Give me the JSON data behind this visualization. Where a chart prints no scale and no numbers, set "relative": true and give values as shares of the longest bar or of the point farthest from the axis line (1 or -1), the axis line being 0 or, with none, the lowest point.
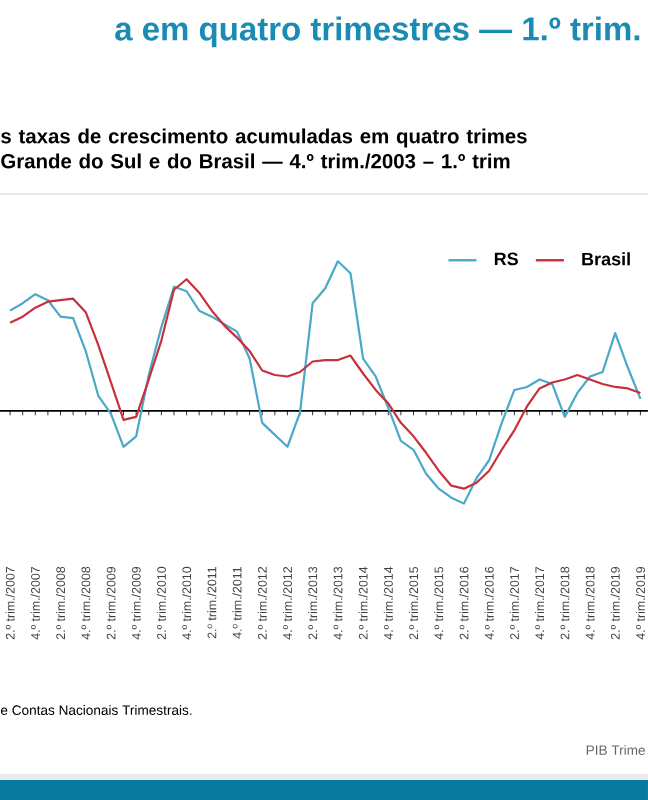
{
  "chart_data": {
    "type": "line",
    "relative": true,
    "title": "a em quatro trimestres — 1.º trim.",
    "subtitle": "s taxas de crescimento acumuladas em quatro trimes Grande do Sul e do Brasil — 4.º trim./2003 – 1.º trim",
    "annotations": [
      "e Contas Nacionais Trimestrais.",
      "PIB Trime"
    ],
    "categories": [
      "2.º trim./2007",
      null,
      "4.º trim./2007",
      null,
      "2.º trim./2008",
      null,
      "4.º trim./2008",
      null,
      "2.º trim./2009",
      null,
      "4.º trim./2009",
      null,
      "2.º trim./2010",
      null,
      "4.º trim./2010",
      null,
      "2.º trim./2011",
      null,
      "4.º trim./2011",
      null,
      "2.º trim./2012",
      null,
      "4.º trim./2012",
      null,
      "2.º trim./2013",
      null,
      "4.º trim./2013",
      null,
      "2.º trim./2014",
      null,
      "4.º trim./2014",
      null,
      "2.º trim./2015",
      null,
      "4.º trim./2015",
      null,
      "2.º trim./2016",
      null,
      "4.º trim./2016",
      null,
      "2.º trim./2017",
      null,
      "4.º trim./2017",
      null,
      "2.º trim./2018",
      null,
      "4.º trim./2018",
      null,
      "2.º trim./2019",
      null,
      "4.º trim./2019"
    ],
    "series": [
      {
        "name": "RS",
        "color": "#4aa8c8",
        "values": [
          0.67,
          0.72,
          0.78,
          0.74,
          0.63,
          0.62,
          0.4,
          0.1,
          -0.02,
          -0.24,
          -0.17,
          0.24,
          0.56,
          0.83,
          0.8,
          0.67,
          0.63,
          0.58,
          0.53,
          0.35,
          -0.08,
          -0.16,
          -0.24,
          -0.01,
          0.72,
          0.82,
          1,
          0.92,
          0.35,
          0.23,
          0.02,
          -0.2,
          -0.26,
          -0.42,
          -0.52,
          -0.58,
          -0.62,
          -0.45,
          -0.33,
          -0.08,
          0.14,
          0.16,
          0.21,
          0.18,
          -0.04,
          0.12,
          0.23,
          0.26,
          0.52,
          0.29,
          0.08
        ]
      },
      {
        "name": "Brasil",
        "color": "#c8303a",
        "values": [
          0.59,
          0.63,
          0.69,
          0.73,
          0.74,
          0.75,
          0.66,
          0.44,
          0.19,
          -0.06,
          -0.04,
          0.21,
          0.47,
          0.81,
          0.88,
          0.79,
          0.67,
          0.57,
          0.49,
          0.4,
          0.27,
          0.24,
          0.23,
          0.26,
          0.33,
          0.34,
          0.34,
          0.37,
          0.25,
          0.14,
          0.05,
          -0.08,
          -0.17,
          -0.28,
          -0.4,
          -0.5,
          -0.52,
          -0.48,
          -0.4,
          -0.26,
          -0.13,
          0.03,
          0.15,
          0.19,
          0.21,
          0.24,
          0.21,
          0.18,
          0.16,
          0.15,
          0.12
        ]
      }
    ],
    "legend": "top right"
  }
}
